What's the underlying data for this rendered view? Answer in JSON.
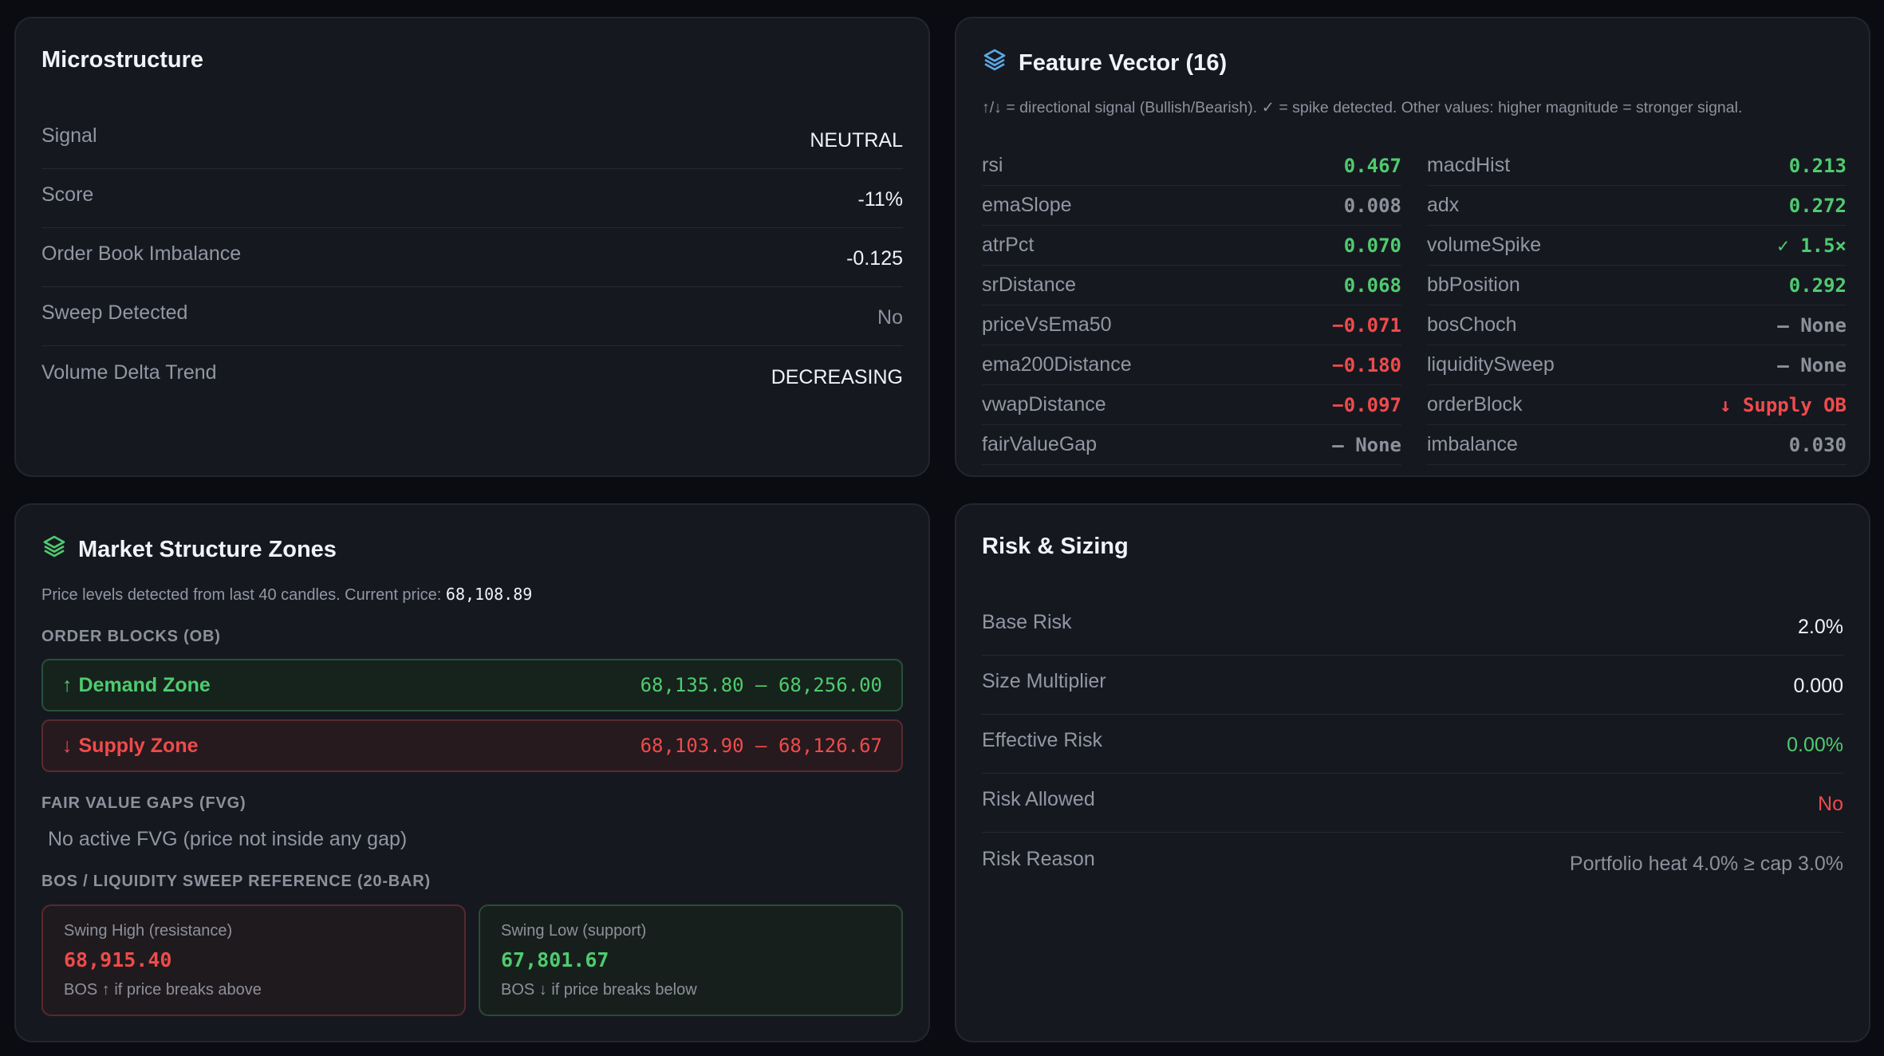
{
  "microstructure": {
    "title": "Microstructure",
    "rows": [
      {
        "label": "Signal",
        "value": "NEUTRAL"
      },
      {
        "label": "Score",
        "value": "-11%"
      },
      {
        "label": "Order Book Imbalance",
        "value": "-0.125"
      },
      {
        "label": "Sweep Detected",
        "value": "No"
      },
      {
        "label": "Volume Delta Trend",
        "value": "DECREASING"
      }
    ]
  },
  "feature_vector": {
    "title": "Feature Vector (16)",
    "note": "↑/↓ = directional signal (Bullish/Bearish). ✓ = spike detected. Other values: higher magnitude = stronger signal.",
    "left": [
      {
        "label": "rsi",
        "value": "0.467",
        "tone": "green"
      },
      {
        "label": "emaSlope",
        "value": "0.008",
        "tone": "muted"
      },
      {
        "label": "atrPct",
        "value": "0.070",
        "tone": "green"
      },
      {
        "label": "srDistance",
        "value": "0.068",
        "tone": "green"
      },
      {
        "label": "priceVsEma50",
        "value": "−0.071",
        "tone": "red"
      },
      {
        "label": "ema200Distance",
        "value": "−0.180",
        "tone": "red"
      },
      {
        "label": "vwapDistance",
        "value": "−0.097",
        "tone": "red"
      },
      {
        "label": "fairValueGap",
        "value": "— None",
        "tone": "muted"
      }
    ],
    "right": [
      {
        "label": "macdHist",
        "value": "0.213",
        "tone": "green"
      },
      {
        "label": "adx",
        "value": "0.272",
        "tone": "green"
      },
      {
        "label": "volumeSpike",
        "value": "✓ 1.5×",
        "tone": "green"
      },
      {
        "label": "bbPosition",
        "value": "0.292",
        "tone": "green"
      },
      {
        "label": "bosChoch",
        "value": "— None",
        "tone": "muted"
      },
      {
        "label": "liquiditySweep",
        "value": "— None",
        "tone": "muted"
      },
      {
        "label": "orderBlock",
        "value": "↓ Supply OB",
        "tone": "red"
      },
      {
        "label": "imbalance",
        "value": "0.030",
        "tone": "muted"
      }
    ]
  },
  "market_structure": {
    "title": "Market Structure Zones",
    "desc_prefix": "Price levels detected from last 40 candles. Current price: ",
    "current_price": "68,108.89",
    "order_blocks_head": "ORDER BLOCKS (OB)",
    "demand": {
      "arrow": "↑",
      "label": "Demand Zone",
      "range": "68,135.80 — 68,256.00"
    },
    "supply": {
      "arrow": "↓",
      "label": "Supply Zone",
      "range": "68,103.90 — 68,126.67"
    },
    "fvg_head": "FAIR VALUE GAPS (FVG)",
    "fvg_empty": "No active FVG (price not inside any gap)",
    "bos_head": "BOS / LIQUIDITY SWEEP REFERENCE (20-BAR)",
    "swing_high": {
      "title": "Swing High (resistance)",
      "price": "68,915.40",
      "note": "BOS ↑ if price breaks above"
    },
    "swing_low": {
      "title": "Swing Low (support)",
      "price": "67,801.67",
      "note": "BOS ↓ if price breaks below"
    }
  },
  "risk": {
    "title": "Risk & Sizing",
    "rows": [
      {
        "label": "Base Risk",
        "value": "2.0%",
        "tone": ""
      },
      {
        "label": "Size Multiplier",
        "value": "0.000",
        "tone": ""
      },
      {
        "label": "Effective Risk",
        "value": "0.00%",
        "tone": "green"
      },
      {
        "label": "Risk Allowed",
        "value": "No",
        "tone": "red"
      },
      {
        "label": "Risk Reason",
        "value": "Portfolio heat 4.0% ≥ cap 3.0%",
        "tone": "muted"
      }
    ]
  },
  "colors": {
    "background": "#0b0c11",
    "card": "#161820",
    "green": "#4fcb6f",
    "red": "#ef4b4b",
    "icon_blue": "#5aa9e6",
    "icon_green": "#4fcb6f"
  },
  "icons": {
    "feature_vector": "layers-icon",
    "market_structure": "layers-icon"
  }
}
